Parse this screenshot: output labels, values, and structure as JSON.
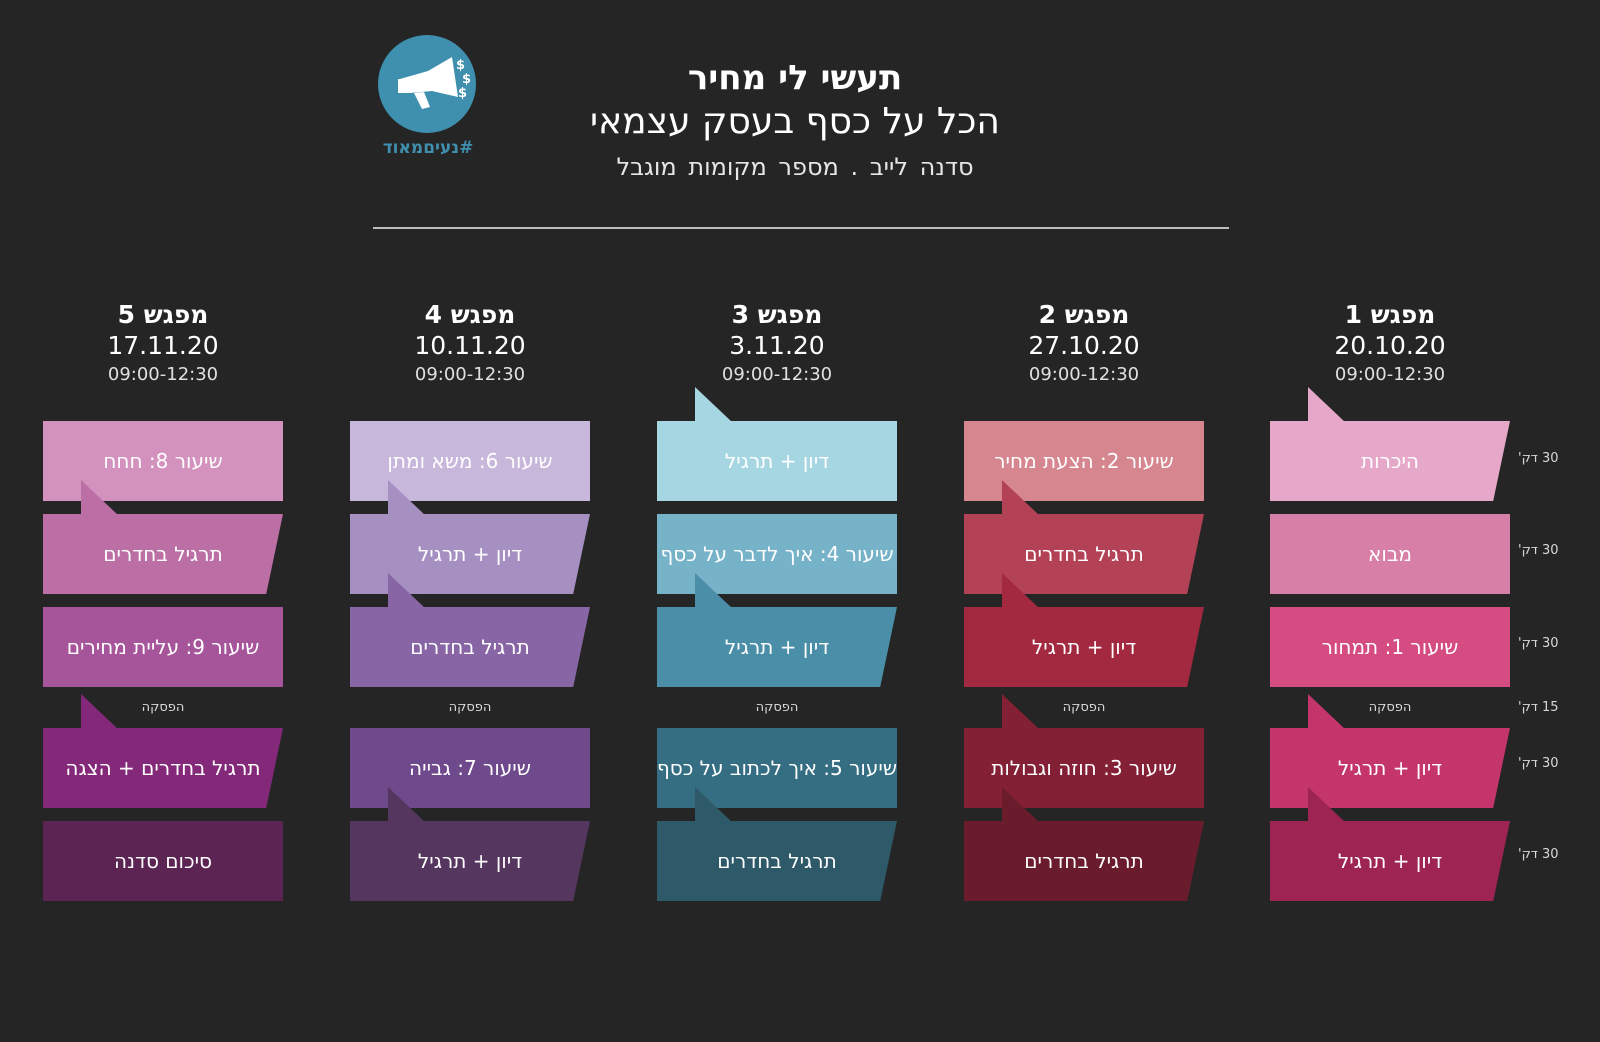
{
  "header": {
    "title": "תעשי לי מחיר",
    "subtitle": "הכל על כסף בעסק עצמאי",
    "tagline": "סדנה לייב . מספר מקומות מוגבל",
    "logo_tag": "#נעיםמאוד"
  },
  "durations": [
    "30 דק'",
    "30 דק'",
    "30 דק'",
    "15 דק'",
    "30 דק'",
    "30 דק'"
  ],
  "columns": [
    {
      "title": "מפגש 1",
      "date": "20.10.20",
      "time": "09:00-12:30",
      "break": "הפסקה",
      "blocks": [
        {
          "label": "היכרות",
          "color": "#e6a8c8"
        },
        {
          "label": "מבוא",
          "color": "#d87fa8"
        },
        {
          "label": "שיעור 1: תמחור",
          "color": "#d54c82"
        },
        {
          "label": "דיון + תרגיל",
          "color": "#c4356b"
        },
        {
          "label": "דיון + תרגיל",
          "color": "#9e2454"
        }
      ]
    },
    {
      "title": "מפגש 2",
      "date": "27.10.20",
      "time": "09:00-12:30",
      "break": "הפסקה",
      "blocks": [
        {
          "label": "שיעור 2: הצעת מחיר",
          "color": "#d5868e"
        },
        {
          "label": "תרגיל בחדרים",
          "color": "#b34256"
        },
        {
          "label": "דיון + תרגיל",
          "color": "#a2293f"
        },
        {
          "label": "שיעור 3: חוזה וגבולות",
          "color": "#832036"
        },
        {
          "label": "תרגיל בחדרים",
          "color": "#6a1c2d"
        }
      ]
    },
    {
      "title": "מפגש 3",
      "date": "3.11.20",
      "time": "09:00-12:30",
      "break": "הפסקה",
      "blocks": [
        {
          "label": "דיון + תרגיל",
          "color": "#a7d6e3"
        },
        {
          "label": "שיעור 4: איך לדבר על כסף",
          "color": "#76b2c8"
        },
        {
          "label": "דיון + תרגיל",
          "color": "#4a8ea8"
        },
        {
          "label": "שיעור 5: איך לכתוב על כסף",
          "color": "#356d82"
        },
        {
          "label": "תרגיל בחדרים",
          "color": "#2d5969"
        }
      ]
    },
    {
      "title": "מפגש 4",
      "date": "10.11.20",
      "time": "09:00-12:30",
      "break": "הפסקה",
      "blocks": [
        {
          "label": "שיעור 6: משא ומתן",
          "color": "#c7b7db"
        },
        {
          "label": "דיון + תרגיל",
          "color": "#a690c2"
        },
        {
          "label": "תרגיל בחדרים",
          "color": "#8866a6"
        },
        {
          "label": "שיעור 7: גבייה",
          "color": "#6e4a8c"
        },
        {
          "label": "דיון + תרגיל",
          "color": "#54365f"
        }
      ]
    },
    {
      "title": "מפגש 5",
      "date": "17.11.20",
      "time": "09:00-12:30",
      "break": "הפסקה",
      "blocks": [
        {
          "label": "שיעור 8: חחח",
          "color": "#d391bd"
        },
        {
          "label": "תרגיל בחדרים",
          "color": "#bc6fa5"
        },
        {
          "label": "שיעור 9: עליית מחירים",
          "color": "#a6559a"
        },
        {
          "label": "תרגיל בחדרים + הצגה",
          "color": "#84297a"
        },
        {
          "label": "סיכום סדנה",
          "color": "#5c2452"
        }
      ]
    }
  ]
}
